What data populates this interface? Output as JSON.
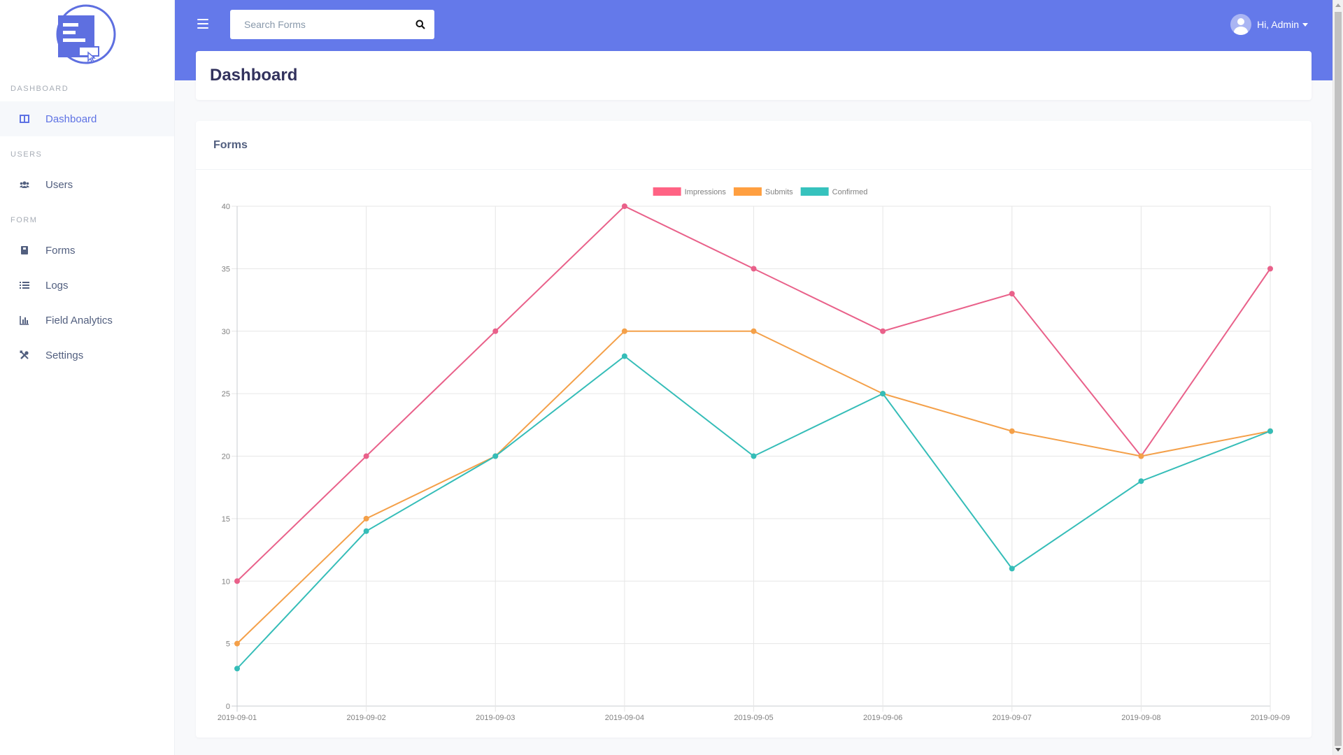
{
  "sidebar": {
    "sections": [
      {
        "heading": "DASHBOARD",
        "items": [
          {
            "label": "Dashboard",
            "icon": "columns-icon",
            "active": true
          }
        ]
      },
      {
        "heading": "USERS",
        "items": [
          {
            "label": "Users",
            "icon": "users-icon"
          }
        ]
      },
      {
        "heading": "FORM",
        "items": [
          {
            "label": "Forms",
            "icon": "book-icon"
          },
          {
            "label": "Logs",
            "icon": "list-icon"
          },
          {
            "label": "Field Analytics",
            "icon": "bar-chart-icon"
          },
          {
            "label": "Settings",
            "icon": "tools-icon"
          }
        ]
      }
    ]
  },
  "header": {
    "search_placeholder": "Search Forms",
    "user_greeting": "Hi, Admin"
  },
  "page": {
    "title": "Dashboard"
  },
  "card": {
    "title": "Forms"
  },
  "colors": {
    "header_bg": "#6479ea",
    "accent": "#5e72e4",
    "impressions": "#e9618a",
    "submits": "#f4a049",
    "confirmed": "#35bdb8"
  },
  "chart_data": {
    "type": "line",
    "x": [
      "2019-09-01",
      "2019-09-02",
      "2019-09-03",
      "2019-09-04",
      "2019-09-05",
      "2019-09-06",
      "2019-09-07",
      "2019-09-08",
      "2019-09-09"
    ],
    "series": [
      {
        "name": "Impressions",
        "color": "#e9618a",
        "fill": "#ff6384",
        "values": [
          10,
          20,
          30,
          40,
          35,
          30,
          33,
          20,
          35
        ]
      },
      {
        "name": "Submits",
        "color": "#f4a049",
        "fill": "#ff9f40",
        "values": [
          5,
          15,
          20,
          30,
          30,
          25,
          22,
          20,
          22
        ]
      },
      {
        "name": "Confirmed",
        "color": "#35bdb8",
        "fill": "#36c2bd",
        "values": [
          3,
          14,
          20,
          28,
          20,
          25,
          11,
          18,
          22
        ]
      }
    ],
    "ylim": [
      0,
      40
    ],
    "yticks": [
      0,
      5,
      10,
      15,
      20,
      25,
      30,
      35,
      40
    ],
    "grid": true,
    "legend": "top-center"
  }
}
